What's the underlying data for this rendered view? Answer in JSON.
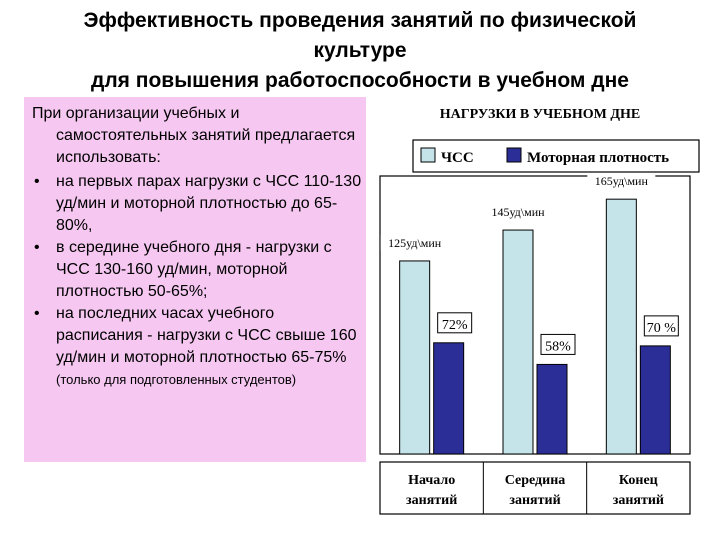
{
  "title": {
    "line1": "Эффективность проведения занятий по физической",
    "line2": "культуре",
    "line3": "для повышения работоспособности в учебном дне"
  },
  "panel": {
    "intro": "При организации учебных и самостоятельных занятий предлагается использовать:",
    "bullet_symbol": "•",
    "bullets": [
      {
        "text": "на первых парах нагрузки с ЧСС 110-130 уд/мин и моторной плотностью до 65-80%,",
        "note": ""
      },
      {
        "text": "в середине учебного дня - нагрузки с ЧСС 130-160 уд/мин, моторной плотностью 50-65%;",
        "note": ""
      },
      {
        "text": "на последних часах учебного расписания - нагрузки с ЧСС свыше 160 уд/мин и моторной плотностью 65-75%",
        "note": "(только для подготовленных студентов)"
      }
    ],
    "background": "#f5c7f1"
  },
  "chart_data": {
    "type": "bar",
    "title": "НАГРУЗКИ В УЧЕБНОМ ДНЕ",
    "categories": [
      [
        "Начало",
        "занятий"
      ],
      [
        "Середина",
        "занятий"
      ],
      [
        "Конец",
        "занятий"
      ]
    ],
    "series": [
      {
        "name": "ЧСС",
        "values": [
          125,
          145,
          165
        ],
        "labels": [
          "125уд\\мин",
          "145уд\\мин",
          "165уд\\мин"
        ],
        "color": "#c5e4e9"
      },
      {
        "name": "Моторная плотность",
        "values": [
          72,
          58,
          70
        ],
        "labels": [
          "72%",
          "58%",
          "70 %"
        ],
        "color": "#2b2e96"
      }
    ],
    "ylim": [
      0,
      180
    ],
    "grid": false,
    "legend": "top"
  }
}
